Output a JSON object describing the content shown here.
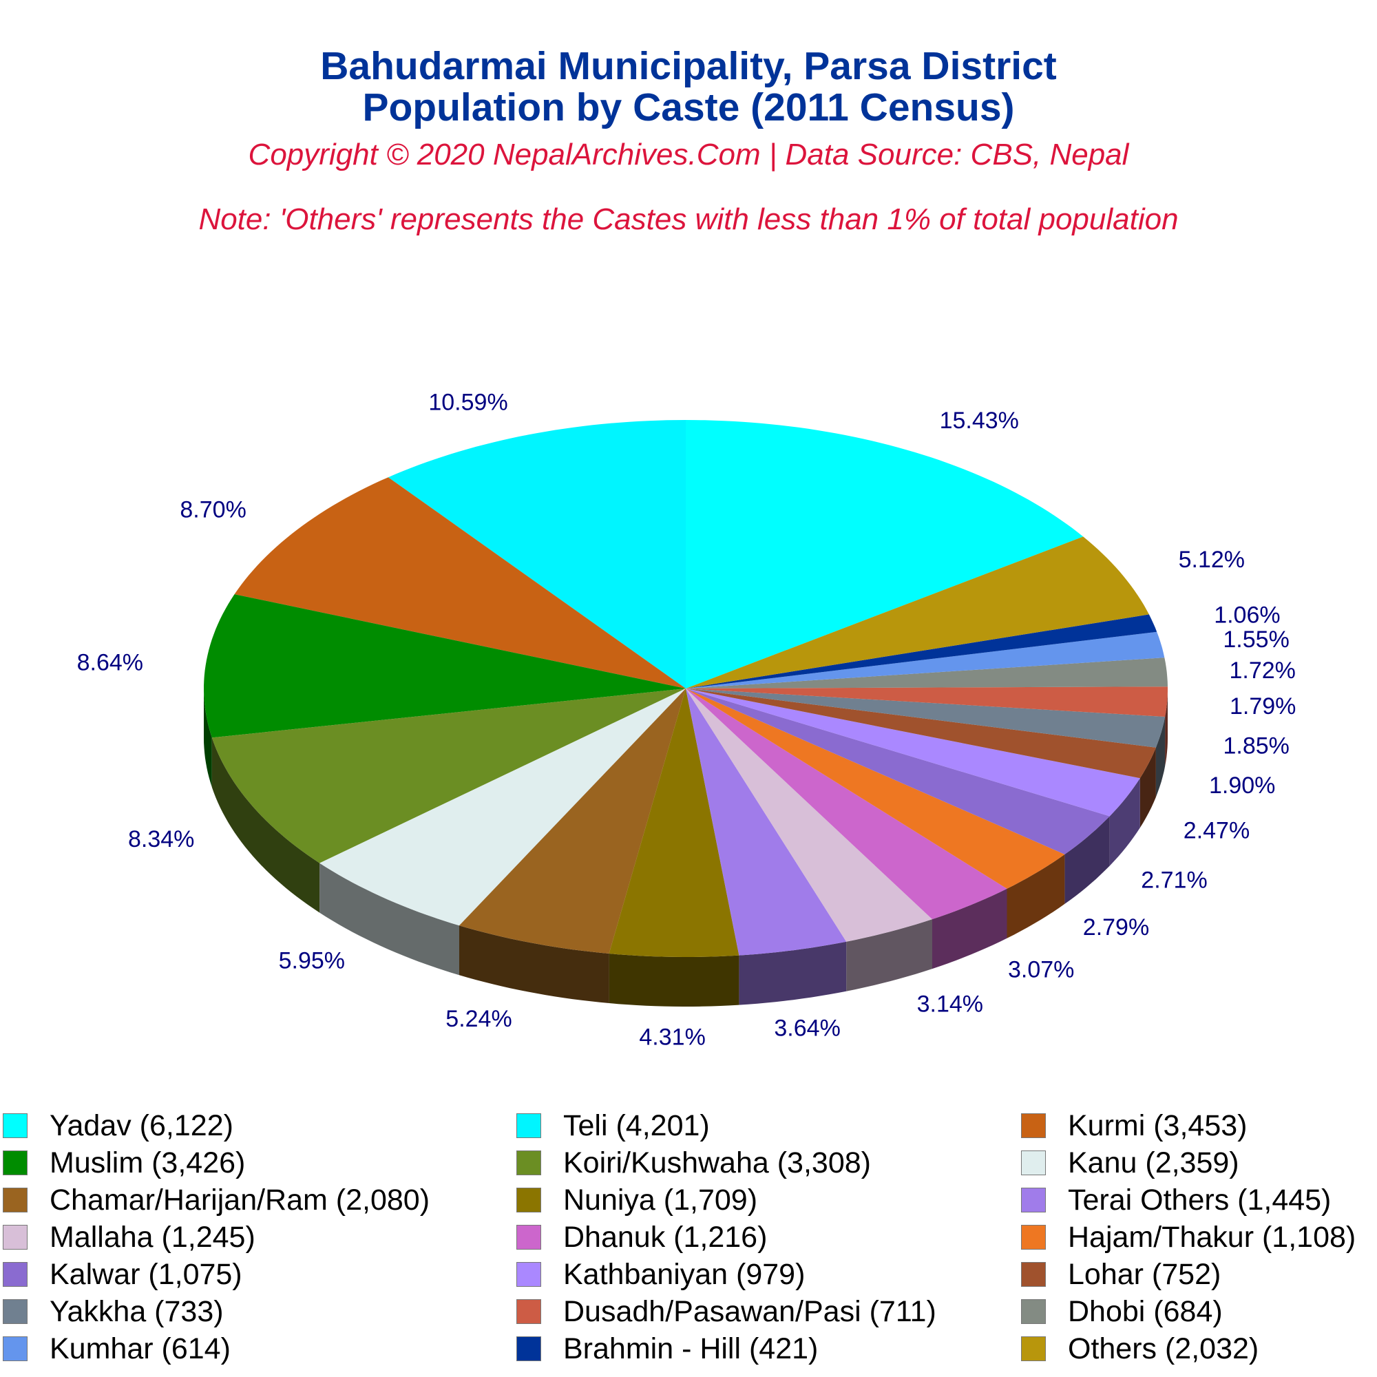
{
  "header": {
    "title_line1": "Bahudarmai Municipality, Parsa District",
    "title_line2": "Population by Caste (2011 Census)",
    "copyright": "Copyright © 2020 NepalArchives.Com | Data Source: CBS, Nepal",
    "note": "Note: 'Others' represents the Castes with less than 1% of total population"
  },
  "chart_data": {
    "type": "pie",
    "style": "3d",
    "legend_position": "bottom",
    "label_color": "#000080",
    "slices": [
      {
        "name": "Yadav",
        "value": 6122,
        "legend": "Yadav (6,122)",
        "percent_label": "15.43%",
        "color": "#00FFFF"
      },
      {
        "name": "Teli",
        "value": 4201,
        "legend": "Teli (4,201)",
        "percent_label": "10.59%",
        "color": "#00F5FF"
      },
      {
        "name": "Kurmi",
        "value": 3453,
        "legend": "Kurmi (3,453)",
        "percent_label": "8.70%",
        "color": "#C86214"
      },
      {
        "name": "Muslim",
        "value": 3426,
        "legend": "Muslim (3,426)",
        "percent_label": "8.64%",
        "color": "#008C00"
      },
      {
        "name": "Koiri/Kushwaha",
        "value": 3308,
        "legend": "Koiri/Kushwaha (3,308)",
        "percent_label": "8.34%",
        "color": "#6B8E23"
      },
      {
        "name": "Kanu",
        "value": 2359,
        "legend": "Kanu (2,359)",
        "percent_label": "5.95%",
        "color": "#E0EEEE"
      },
      {
        "name": "Chamar/Harijan/Ram",
        "value": 2080,
        "legend": "Chamar/Harijan/Ram (2,080)",
        "percent_label": "5.24%",
        "color": "#9A6420"
      },
      {
        "name": "Nuniya",
        "value": 1709,
        "legend": "Nuniya (1,709)",
        "percent_label": "4.31%",
        "color": "#8B7500"
      },
      {
        "name": "Terai Others",
        "value": 1445,
        "legend": "Terai Others (1,445)",
        "percent_label": "3.64%",
        "color": "#A07CEA"
      },
      {
        "name": "Mallaha",
        "value": 1245,
        "legend": "Mallaha (1,245)",
        "percent_label": "3.14%",
        "color": "#D8BFD8"
      },
      {
        "name": "Dhanuk",
        "value": 1216,
        "legend": "Dhanuk (1,216)",
        "percent_label": "3.07%",
        "color": "#CC66CC"
      },
      {
        "name": "Hajam/Thakur",
        "value": 1108,
        "legend": "Hajam/Thakur (1,108)",
        "percent_label": "2.79%",
        "color": "#EE7722"
      },
      {
        "name": "Kalwar",
        "value": 1075,
        "legend": "Kalwar (1,075)",
        "percent_label": "2.71%",
        "color": "#8A6BD0"
      },
      {
        "name": "Kathbaniyan",
        "value": 979,
        "legend": "Kathbaniyan (979)",
        "percent_label": "2.47%",
        "color": "#AA88FF"
      },
      {
        "name": "Lohar",
        "value": 752,
        "legend": "Lohar (752)",
        "percent_label": "1.90%",
        "color": "#A0522D"
      },
      {
        "name": "Yakkha",
        "value": 733,
        "legend": "Yakkha (733)",
        "percent_label": "1.85%",
        "color": "#708090"
      },
      {
        "name": "Dusadh/Pasawan/Pasi",
        "value": 711,
        "legend": "Dusadh/Pasawan/Pasi (711)",
        "percent_label": "1.79%",
        "color": "#CD5C45"
      },
      {
        "name": "Dhobi",
        "value": 684,
        "legend": "Dhobi (684)",
        "percent_label": "1.72%",
        "color": "#838B83"
      },
      {
        "name": "Kumhar",
        "value": 614,
        "legend": "Kumhar (614)",
        "percent_label": "1.55%",
        "color": "#6495ED"
      },
      {
        "name": "Brahmin - Hill",
        "value": 421,
        "legend": "Brahmin - Hill (421)",
        "percent_label": "1.06%",
        "color": "#003399"
      },
      {
        "name": "Others",
        "value": 2032,
        "legend": "Others (2,032)",
        "percent_label": "5.12%",
        "color": "#B8960C"
      }
    ]
  }
}
